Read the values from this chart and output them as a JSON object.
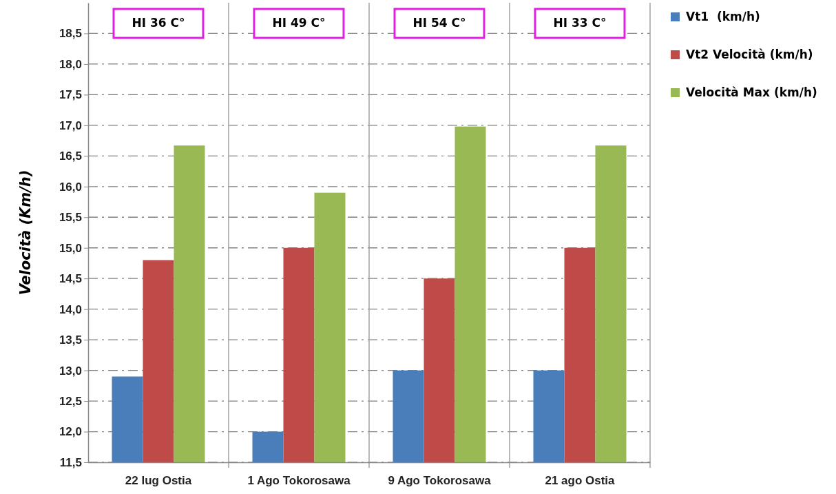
{
  "chart_data": {
    "type": "bar",
    "ylabel": "Velocità (Km/h)",
    "categories": [
      "22 lug Ostia",
      "1 Ago Tokorosawa",
      "9 Ago Tokorosawa",
      "21 ago Ostia"
    ],
    "series": [
      {
        "name": "Vt1  (km/h)",
        "color": "#4a7ebb",
        "values": [
          12.9,
          12.0,
          13.0,
          13.0
        ]
      },
      {
        "name": "Vt2 Velocità (km/h)",
        "color": "#be4b48",
        "values": [
          14.8,
          15.0,
          14.5,
          15.0
        ]
      },
      {
        "name": "Velocità Max (km/h)",
        "color": "#98b954",
        "values": [
          16.67,
          15.9,
          16.98,
          16.67
        ]
      }
    ],
    "ylim": [
      11.5,
      19.0
    ],
    "yticks": [
      {
        "value": 11.5,
        "label": "11,5"
      },
      {
        "value": 12.0,
        "label": "12,0"
      },
      {
        "value": 12.5,
        "label": "12,5"
      },
      {
        "value": 13.0,
        "label": "13,0"
      },
      {
        "value": 13.5,
        "label": "13,5"
      },
      {
        "value": 14.0,
        "label": "14,0"
      },
      {
        "value": 14.5,
        "label": "14,5"
      },
      {
        "value": 15.0,
        "label": "15,0"
      },
      {
        "value": 15.5,
        "label": "15,5"
      },
      {
        "value": 16.0,
        "label": "16,0"
      },
      {
        "value": 16.5,
        "label": "16,5"
      },
      {
        "value": 17.0,
        "label": "17,0"
      },
      {
        "value": 17.5,
        "label": "17,5"
      },
      {
        "value": 18.0,
        "label": "18,0"
      },
      {
        "value": 18.5,
        "label": "18,5"
      }
    ],
    "annotations": [
      "HI 36 C°",
      "HI 49 C°",
      "HI 54 C°",
      "HI 33 C°"
    ],
    "grid": true,
    "legend": "top right",
    "line_style": "dashed"
  }
}
